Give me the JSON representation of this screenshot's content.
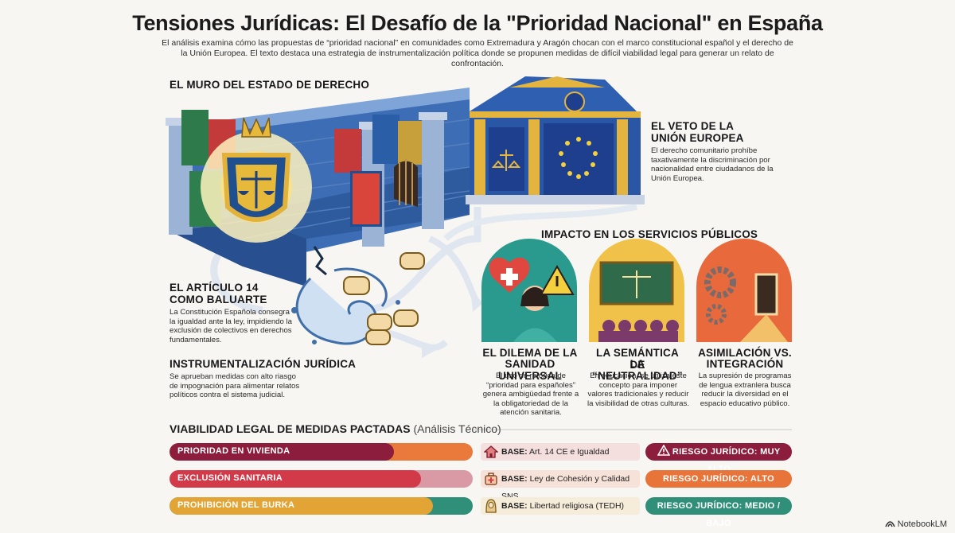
{
  "title": "Tensiones Jurídicas: El Desafío de la \"Prioridad Nacional\" en España",
  "subtitle": "El análisis examina cómo las propuestas de “prioridad nacional” en comunidades como Extremadura y Aragón chocan con el marco constitucional español y el derecho de la Unión Europea. El texto destaca una estrategia de instrumentalización política donde se propunen medidas de difícil viabilidad legal para generar un relato de confrontación.",
  "sections": {
    "muro": {
      "heading": "EL MURO DEL ESTADO DE DERECHO"
    },
    "veto": {
      "heading_1": "EL VETO DE LA",
      "heading_2": "UNIÓN EUROPEA",
      "text": "El derecho comunitario prohíbe taxativamente la discriminación por nacionalidad entre ciudadanos de la Unión Europea."
    },
    "articulo": {
      "heading_1": "EL ARTÍCULO 14",
      "heading_2": "COMO BALUARTE",
      "text": "La Constitución Española consegra la igualdad ante la ley, impidiendo la exclusión de colectivos en derechos fundamentales."
    },
    "instrumentalizacion": {
      "heading": "INSTRUMENTALIZACIÓN JURÍDICA",
      "text": "Se aprueban medidas con alto riasgo de impognación para alimentar relatos políticos contra el sistema judicial."
    },
    "impacto": {
      "heading": "IMPACTO EN LOS SERVICIOS PÚBLICOS",
      "cards": [
        {
          "heading_1": "EL DILEMA DE LA",
          "heading_2": "SANIDAD UNIVERSAL",
          "text": "El uso de retórica de “prioridad para españoles” genera ambigüedad frente a la obligatoriedad de la atención sanitaria."
        },
        {
          "heading_1": "LA SEMÁNTICA DE",
          "heading_2": "LA “NEUTRALIDAD”",
          "text": "En educación, se utiliza este concepto para imponer valores tradicionales y reducir la visibilidad de otras culturas."
        },
        {
          "heading_1": "ASIMILACIÓN VS.",
          "heading_2": "INTEGRACIÓN",
          "text": "La supresión de programas de lengua extranlera busca reducir la diversidad en el espacio educativo público."
        }
      ]
    }
  },
  "viability": {
    "heading": "VIABILIDAD LEGAL DE MEDIDAS PACTADAS",
    "heading_suffix": "(Análisis Técnico)",
    "rows": [
      {
        "measure": "PRIORIDAD EN VIVIENDA",
        "base_key": "BASE:",
        "base_value": "Art. 14 CE e Igualdad",
        "base_icon": "house-icon",
        "risk": "RIESGO JURÍDICO: MUY ALTO",
        "risk_icon": "warning-icon",
        "color": "#8c1d3c",
        "level": 0.74
      },
      {
        "measure": "EXCLUSIÓN SANITARIA",
        "base_key": "BASE:",
        "base_value": "Ley de Cohesión y Calidad SNS",
        "base_icon": "medical-kit-icon",
        "risk": "RIESGO JURÍDICO: ALTO",
        "color": "#d23a4a",
        "level": 0.83
      },
      {
        "measure": "PROHIBICIÓN DEL BURKA",
        "base_key": "BASE:",
        "base_value": "Libertad religiosa (TEDH)",
        "base_icon": "veiled-person-icon",
        "risk": "RIESGO JURÍDICO: MEDIO / BAJO",
        "color": "#e2a434",
        "level": 0.87
      }
    ]
  },
  "footer": {
    "logo": "NotebookLM"
  }
}
